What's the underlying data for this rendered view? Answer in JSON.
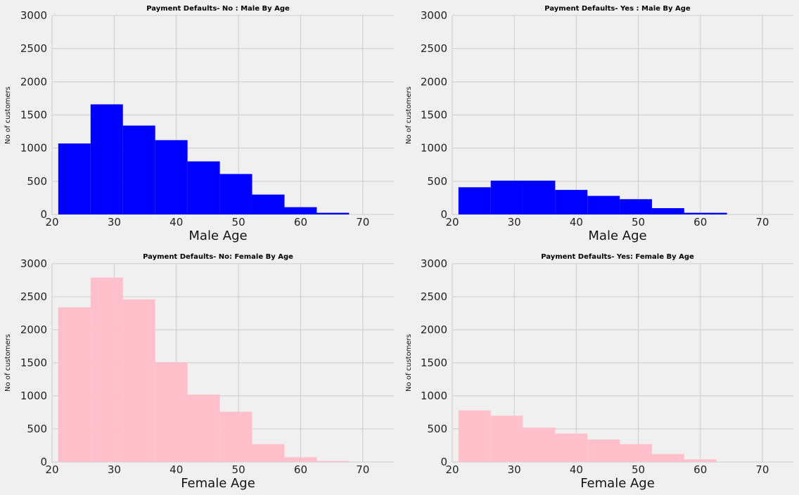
{
  "colors": {
    "background": "#f0f0f0",
    "grid": "#cbcbcb",
    "male": "#0000ff",
    "female": "#ffc0cb"
  },
  "chart_data": [
    {
      "type": "bar",
      "title": "Payment Defaults- No : Male By Age",
      "xlabel": "Male Age",
      "ylabel": "No of customers",
      "color": "#0000ff",
      "xlim": [
        20,
        75
      ],
      "ylim": [
        0,
        3000
      ],
      "xticks": [
        20,
        30,
        40,
        50,
        60,
        70
      ],
      "yticks": [
        0,
        500,
        1000,
        1500,
        2000,
        2500,
        3000
      ],
      "grid": true,
      "bins": [
        {
          "x0": 21.0,
          "x1": 26.2,
          "value": 1070
        },
        {
          "x0": 26.2,
          "x1": 31.4,
          "value": 1660
        },
        {
          "x0": 31.4,
          "x1": 36.6,
          "value": 1340
        },
        {
          "x0": 36.6,
          "x1": 41.8,
          "value": 1120
        },
        {
          "x0": 41.8,
          "x1": 47.0,
          "value": 800
        },
        {
          "x0": 47.0,
          "x1": 52.2,
          "value": 610
        },
        {
          "x0": 52.2,
          "x1": 57.4,
          "value": 300
        },
        {
          "x0": 57.4,
          "x1": 62.6,
          "value": 110
        },
        {
          "x0": 62.6,
          "x1": 67.8,
          "value": 25
        }
      ]
    },
    {
      "type": "bar",
      "title": "Payment Defaults- Yes : Male By Age",
      "xlabel": "Male Age",
      "ylabel": "No of customers",
      "color": "#0000ff",
      "xlim": [
        20,
        75
      ],
      "ylim": [
        0,
        3000
      ],
      "xticks": [
        20,
        30,
        40,
        50,
        60,
        70
      ],
      "yticks": [
        0,
        500,
        1000,
        1500,
        2000,
        2500,
        3000
      ],
      "grid": true,
      "bins": [
        {
          "x0": 21.0,
          "x1": 26.2,
          "value": 410
        },
        {
          "x0": 26.2,
          "x1": 31.4,
          "value": 510
        },
        {
          "x0": 31.4,
          "x1": 36.6,
          "value": 510
        },
        {
          "x0": 36.6,
          "x1": 41.8,
          "value": 370
        },
        {
          "x0": 41.8,
          "x1": 47.0,
          "value": 280
        },
        {
          "x0": 47.0,
          "x1": 52.2,
          "value": 230
        },
        {
          "x0": 52.2,
          "x1": 57.4,
          "value": 95
        },
        {
          "x0": 57.4,
          "x1": 62.6,
          "value": 25
        },
        {
          "x0": 62.6,
          "x1": 64.3,
          "value": 25
        }
      ]
    },
    {
      "type": "bar",
      "title": "Payment Defaults- No: Female By Age",
      "xlabel": "Female Age",
      "ylabel": "No of customers",
      "color": "#ffc0cb",
      "xlim": [
        20,
        75
      ],
      "ylim": [
        0,
        3000
      ],
      "xticks": [
        20,
        30,
        40,
        50,
        60,
        70
      ],
      "yticks": [
        0,
        500,
        1000,
        1500,
        2000,
        2500,
        3000
      ],
      "grid": true,
      "bins": [
        {
          "x0": 21.0,
          "x1": 26.2,
          "value": 2340
        },
        {
          "x0": 26.2,
          "x1": 31.4,
          "value": 2790
        },
        {
          "x0": 31.4,
          "x1": 36.6,
          "value": 2460
        },
        {
          "x0": 36.6,
          "x1": 41.8,
          "value": 1510
        },
        {
          "x0": 41.8,
          "x1": 47.0,
          "value": 1020
        },
        {
          "x0": 47.0,
          "x1": 52.2,
          "value": 760
        },
        {
          "x0": 52.2,
          "x1": 57.4,
          "value": 270
        },
        {
          "x0": 57.4,
          "x1": 62.6,
          "value": 70
        },
        {
          "x0": 62.6,
          "x1": 67.8,
          "value": 15
        }
      ]
    },
    {
      "type": "bar",
      "title": "Payment Defaults- Yes: Female By Age",
      "xlabel": "Female Age",
      "ylabel": "No of customers",
      "color": "#ffc0cb",
      "xlim": [
        20,
        75
      ],
      "ylim": [
        0,
        3000
      ],
      "xticks": [
        20,
        30,
        40,
        50,
        60,
        70
      ],
      "yticks": [
        0,
        500,
        1000,
        1500,
        2000,
        2500,
        3000
      ],
      "grid": true,
      "bins": [
        {
          "x0": 21.0,
          "x1": 26.2,
          "value": 780
        },
        {
          "x0": 26.2,
          "x1": 31.4,
          "value": 700
        },
        {
          "x0": 31.4,
          "x1": 36.6,
          "value": 520
        },
        {
          "x0": 36.6,
          "x1": 41.8,
          "value": 430
        },
        {
          "x0": 41.8,
          "x1": 47.0,
          "value": 340
        },
        {
          "x0": 47.0,
          "x1": 52.2,
          "value": 270
        },
        {
          "x0": 52.2,
          "x1": 57.4,
          "value": 120
        },
        {
          "x0": 57.4,
          "x1": 62.6,
          "value": 40
        }
      ]
    }
  ]
}
